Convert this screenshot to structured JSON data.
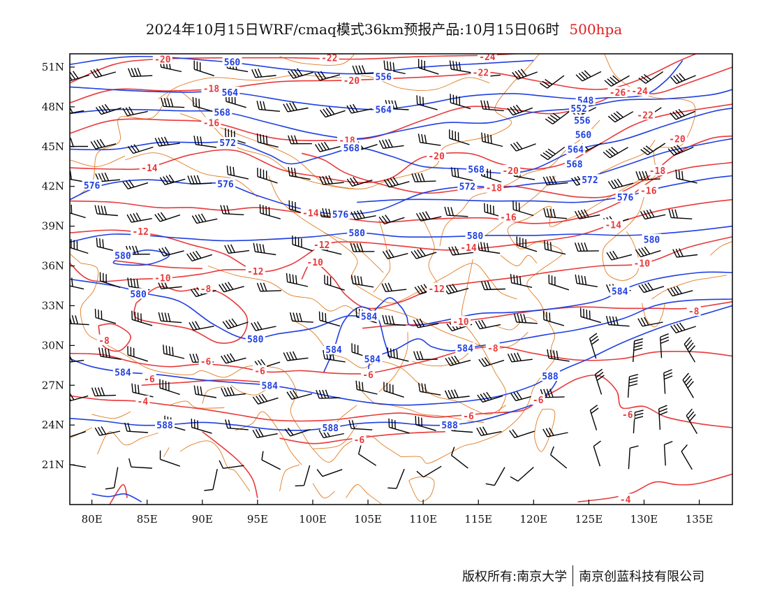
{
  "title": {
    "main": "2024年10月15日WRF/cmaq模式36km预报产品:10月15日06时",
    "level": "500hpa"
  },
  "footer": {
    "copyright": "版权所有:南京大学",
    "company": "南京创蓝科技有限公司"
  },
  "colors": {
    "temperature": "#e8393a",
    "geopotential": "#1f3fe0",
    "borders": "#e07b22",
    "barbs": "#000000"
  },
  "map": {
    "lon_range": [
      78,
      138
    ],
    "lat_range": [
      18,
      52
    ],
    "lon_ticks": [
      "80E",
      "85E",
      "90E",
      "95E",
      "100E",
      "105E",
      "110E",
      "115E",
      "120E",
      "125E",
      "130E",
      "135E"
    ],
    "lat_ticks": [
      "51N",
      "48N",
      "45N",
      "42N",
      "39N",
      "36N",
      "33N",
      "30N",
      "27N",
      "24N",
      "21N"
    ]
  },
  "contours": {
    "geopotential_labels": [
      {
        "text": "560",
        "lon": 92.7,
        "lat": 51.4
      },
      {
        "text": "564",
        "lon": 92.5,
        "lat": 49.1
      },
      {
        "text": "568",
        "lon": 91.8,
        "lat": 47.6
      },
      {
        "text": "572",
        "lon": 92.3,
        "lat": 45.3
      },
      {
        "text": "568",
        "lon": 103.5,
        "lat": 44.9
      },
      {
        "text": "576",
        "lon": 92.1,
        "lat": 42.2
      },
      {
        "text": "576",
        "lon": 80.0,
        "lat": 42.1
      },
      {
        "text": "576",
        "lon": 102.5,
        "lat": 39.9
      },
      {
        "text": "572",
        "lon": 114.0,
        "lat": 42.0
      },
      {
        "text": "568",
        "lon": 114.8,
        "lat": 43.3
      },
      {
        "text": "556",
        "lon": 106.4,
        "lat": 50.3
      },
      {
        "text": "564",
        "lon": 106.4,
        "lat": 47.8
      },
      {
        "text": "548",
        "lon": 124.7,
        "lat": 48.5
      },
      {
        "text": "552",
        "lon": 124.1,
        "lat": 47.9
      },
      {
        "text": "556",
        "lon": 124.4,
        "lat": 47.0
      },
      {
        "text": "560",
        "lon": 124.5,
        "lat": 45.9
      },
      {
        "text": "564",
        "lon": 123.8,
        "lat": 44.8
      },
      {
        "text": "568",
        "lon": 123.7,
        "lat": 43.7
      },
      {
        "text": "572",
        "lon": 125.1,
        "lat": 42.5
      },
      {
        "text": "576",
        "lon": 128.3,
        "lat": 41.2
      },
      {
        "text": "580",
        "lon": 104.0,
        "lat": 38.5
      },
      {
        "text": "580",
        "lon": 114.7,
        "lat": 38.3
      },
      {
        "text": "580",
        "lon": 130.7,
        "lat": 38.0
      },
      {
        "text": "580",
        "lon": 82.8,
        "lat": 36.8
      },
      {
        "text": "580",
        "lon": 84.2,
        "lat": 33.9
      },
      {
        "text": "580",
        "lon": 94.8,
        "lat": 30.5
      },
      {
        "text": "584",
        "lon": 105.1,
        "lat": 32.2
      },
      {
        "text": "584",
        "lon": 101.9,
        "lat": 29.7
      },
      {
        "text": "584",
        "lon": 105.4,
        "lat": 29.0
      },
      {
        "text": "584",
        "lon": 113.8,
        "lat": 29.8
      },
      {
        "text": "584",
        "lon": 82.8,
        "lat": 28.0
      },
      {
        "text": "584",
        "lon": 96.1,
        "lat": 27.0
      },
      {
        "text": "584",
        "lon": 127.8,
        "lat": 34.1
      },
      {
        "text": "588",
        "lon": 121.5,
        "lat": 27.7
      },
      {
        "text": "588",
        "lon": 86.6,
        "lat": 24.0
      },
      {
        "text": "588",
        "lon": 101.6,
        "lat": 23.8
      },
      {
        "text": "588",
        "lon": 112.4,
        "lat": 24.0
      }
    ],
    "temperature_labels": [
      {
        "text": "-20",
        "lon": 86.4,
        "lat": 51.6
      },
      {
        "text": "-22",
        "lon": 101.5,
        "lat": 51.7
      },
      {
        "text": "-24",
        "lon": 115.8,
        "lat": 51.8
      },
      {
        "text": "-22",
        "lon": 115.2,
        "lat": 50.6
      },
      {
        "text": "-20",
        "lon": 103.5,
        "lat": 50.0
      },
      {
        "text": "-18",
        "lon": 90.8,
        "lat": 49.4
      },
      {
        "text": "-16",
        "lon": 90.8,
        "lat": 46.8
      },
      {
        "text": "-18",
        "lon": 103.1,
        "lat": 45.5
      },
      {
        "text": "-20",
        "lon": 111.2,
        "lat": 44.3
      },
      {
        "text": "-20",
        "lon": 117.9,
        "lat": 43.2
      },
      {
        "text": "-18",
        "lon": 116.4,
        "lat": 41.9
      },
      {
        "text": "-16",
        "lon": 117.7,
        "lat": 39.7
      },
      {
        "text": "-14",
        "lon": 85.2,
        "lat": 43.4
      },
      {
        "text": "-14",
        "lon": 99.8,
        "lat": 40.0
      },
      {
        "text": "-12",
        "lon": 84.4,
        "lat": 38.6
      },
      {
        "text": "-12",
        "lon": 100.8,
        "lat": 37.6
      },
      {
        "text": "-12",
        "lon": 94.8,
        "lat": 35.6
      },
      {
        "text": "-10",
        "lon": 86.4,
        "lat": 35.1
      },
      {
        "text": "-8",
        "lon": 90.3,
        "lat": 34.3
      },
      {
        "text": "-10",
        "lon": 100.2,
        "lat": 36.3
      },
      {
        "text": "-14",
        "lon": 114.1,
        "lat": 37.4
      },
      {
        "text": "-12",
        "lon": 111.2,
        "lat": 34.3
      },
      {
        "text": "-10",
        "lon": 113.4,
        "lat": 31.8
      },
      {
        "text": "-8",
        "lon": 81.1,
        "lat": 30.4
      },
      {
        "text": "-6",
        "lon": 90.3,
        "lat": 28.8
      },
      {
        "text": "-6",
        "lon": 85.2,
        "lat": 27.5
      },
      {
        "text": "-6",
        "lon": 95.2,
        "lat": 28.1
      },
      {
        "text": "-6",
        "lon": 105.0,
        "lat": 27.8
      },
      {
        "text": "-8",
        "lon": 116.3,
        "lat": 29.8
      },
      {
        "text": "-4",
        "lon": 84.6,
        "lat": 25.8
      },
      {
        "text": "-6",
        "lon": 114.1,
        "lat": 24.7
      },
      {
        "text": "-6",
        "lon": 104.2,
        "lat": 22.9
      },
      {
        "text": "-6",
        "lon": 120.4,
        "lat": 25.9
      },
      {
        "text": "-6",
        "lon": 128.5,
        "lat": 24.8
      },
      {
        "text": "-26",
        "lon": 127.6,
        "lat": 49.1
      },
      {
        "text": "-24",
        "lon": 129.6,
        "lat": 49.2
      },
      {
        "text": "-22",
        "lon": 130.1,
        "lat": 47.4
      },
      {
        "text": "-20",
        "lon": 133.0,
        "lat": 45.6
      },
      {
        "text": "-18",
        "lon": 131.2,
        "lat": 43.2
      },
      {
        "text": "-16",
        "lon": 130.4,
        "lat": 41.7
      },
      {
        "text": "-14",
        "lon": 127.2,
        "lat": 39.1
      },
      {
        "text": "-10",
        "lon": 129.8,
        "lat": 36.2
      },
      {
        "text": "-8",
        "lon": 134.5,
        "lat": 32.6
      },
      {
        "text": "-4",
        "lon": 128.3,
        "lat": 18.4
      }
    ]
  }
}
